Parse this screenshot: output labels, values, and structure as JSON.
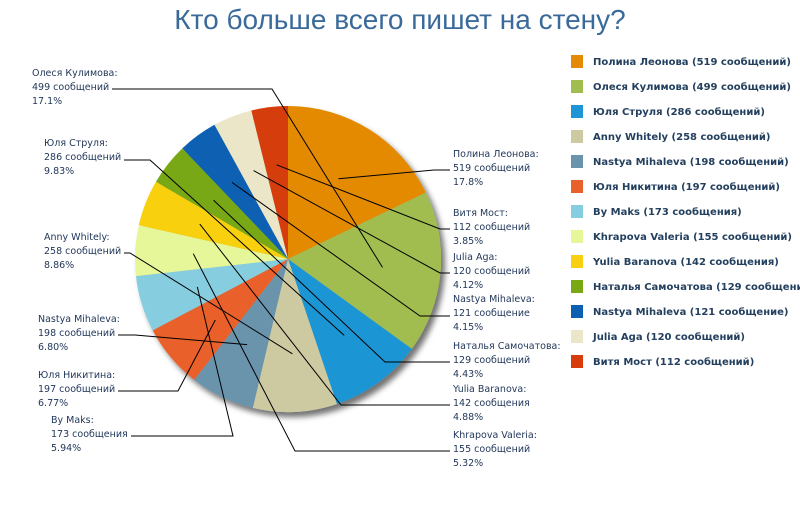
{
  "title": "Кто больше всего пишет на стену?",
  "chart_data": {
    "type": "pie",
    "title": "Кто больше всего пишет на стену?",
    "legend_position": "right",
    "slices": [
      {
        "name": "Полина Леонова",
        "value": 519,
        "percent": "17.8%",
        "count_label": "519 сообщений",
        "legend_label": "Полина Леонова (519 сообщений)",
        "color": "#e48a06"
      },
      {
        "name": "Олеся Кулимова",
        "value": 499,
        "percent": "17.1%",
        "count_label": "499 сообщений",
        "legend_label": "Олеся Кулимова (499 сообщений)",
        "color": "#a2bd4f"
      },
      {
        "name": "Юля Струля",
        "value": 286,
        "percent": "9.83%",
        "count_label": "286 сообщений",
        "legend_label": "Юля Струля (286 сообщений)",
        "color": "#1e95d4"
      },
      {
        "name": "Anny Whitely",
        "value": 258,
        "percent": "8.86%",
        "count_label": "258 сообщений",
        "legend_label": "Anny Whitely (258 сообщений)",
        "color": "#cdc9a1"
      },
      {
        "name": "Nastya Mihaleva",
        "value": 198,
        "percent": "6.80%",
        "count_label": "198 сообщений",
        "legend_label": "Nastya Mihaleva (198 сообщений)",
        "color": "#6994ac"
      },
      {
        "name": "Юля Никитина",
        "value": 197,
        "percent": "6.77%",
        "count_label": "197 сообщений",
        "legend_label": "Юля Никитина (197 сообщений)",
        "color": "#e9612a"
      },
      {
        "name": "By Maks",
        "value": 173,
        "percent": "5.94%",
        "count_label": "173 сообщения",
        "legend_label": "By Maks (173 сообщения)",
        "color": "#86cde0"
      },
      {
        "name": "Khrapova Valeria",
        "value": 155,
        "percent": "5.32%",
        "count_label": "155 сообщений",
        "legend_label": "Khrapova Valeria (155 сообщений)",
        "color": "#e6f79a"
      },
      {
        "name": "Yulia Baranova",
        "value": 142,
        "percent": "4.88%",
        "count_label": "142 сообщения",
        "legend_label": "Yulia Baranova (142 сообщения)",
        "color": "#f8d011"
      },
      {
        "name": "Наталья Самочатова",
        "value": 129,
        "percent": "4.43%",
        "count_label": "129 сообщений",
        "legend_label": "Наталья Самочатова (129 сообщений)",
        "color": "#79a813"
      },
      {
        "name": "Nastya Mihaleva",
        "value": 121,
        "percent": "4.15%",
        "count_label": "121 сообщение",
        "legend_label": "Nastya Mihaleva (121 сообщение)",
        "color": "#0b60b2"
      },
      {
        "name": "Julia Aga",
        "value": 120,
        "percent": "4.12%",
        "count_label": "120 сообщений",
        "legend_label": "Julia Aga (120 сообщений)",
        "color": "#ebe6c8"
      },
      {
        "name": "Витя Мост",
        "value": 112,
        "percent": "3.85%",
        "count_label": "112 сообщений",
        "legend_label": "Витя Мост (112 сообщений)",
        "color": "#d63c0c"
      }
    ]
  }
}
